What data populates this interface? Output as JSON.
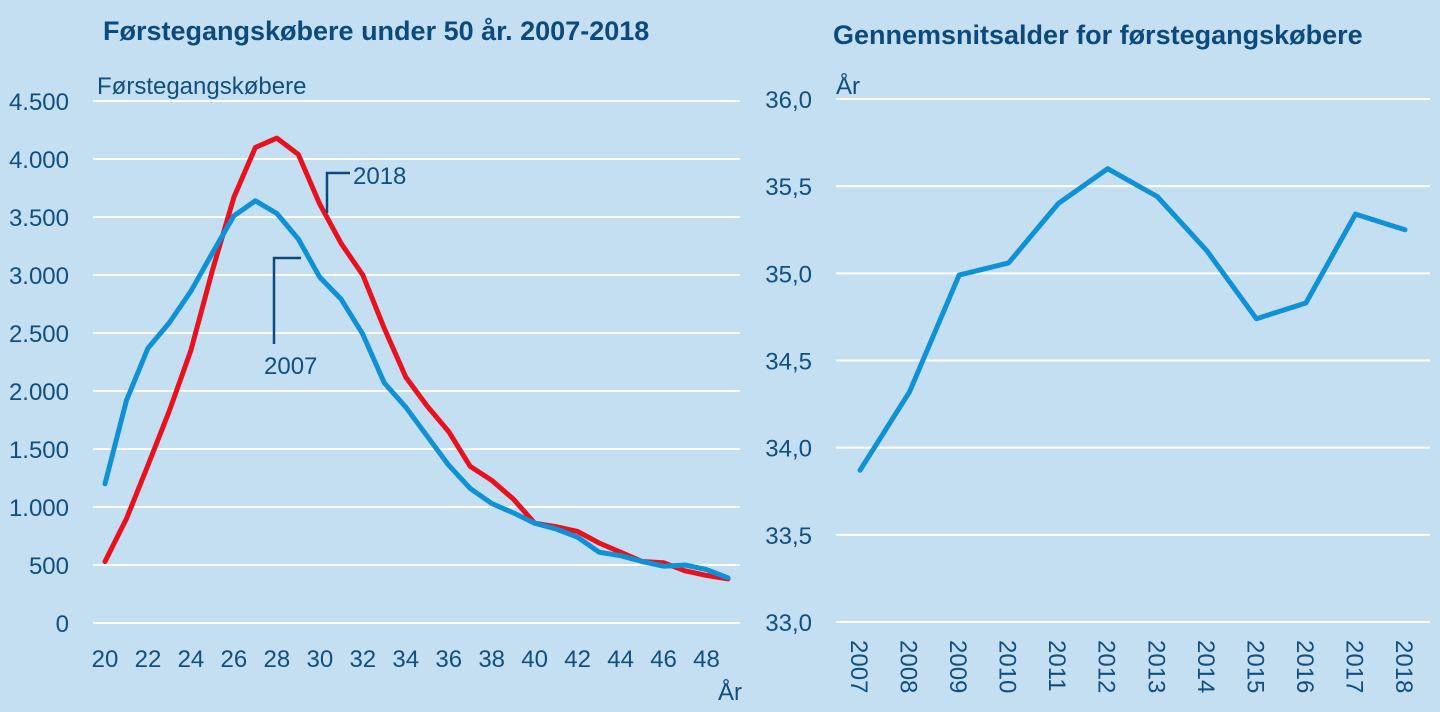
{
  "colors": {
    "background": "#c5dff2",
    "text": "#104f80",
    "grid": "#ffffff",
    "series_2007": "#0f91d6",
    "series_2018": "#e8121e",
    "annotation": "#0d4a7c"
  },
  "chart_data": [
    {
      "type": "line",
      "title": "Førstegangskøbere under 50 år. 2007-2018",
      "ylabel": "Førstegangskøbere",
      "xlabel": "År",
      "ylim": [
        0,
        4500
      ],
      "yticks": [
        0,
        500,
        1000,
        1500,
        2000,
        2500,
        3000,
        3500,
        4000,
        4500
      ],
      "ytick_labels": [
        "0",
        "500",
        "1.000",
        "1.500",
        "2.000",
        "2.500",
        "3.000",
        "3.500",
        "4.000",
        "4.500"
      ],
      "xlim": [
        20,
        49
      ],
      "xticks": [
        20,
        22,
        24,
        26,
        28,
        30,
        32,
        34,
        36,
        38,
        40,
        42,
        44,
        46,
        48
      ],
      "xtick_labels": [
        "20",
        "22",
        "24",
        "26",
        "28",
        "30",
        "32",
        "34",
        "36",
        "38",
        "40",
        "42",
        "44",
        "46",
        "48"
      ],
      "grid": true,
      "legend": "inline-annotations",
      "x": [
        20,
        21,
        22,
        23,
        24,
        25,
        26,
        27,
        28,
        29,
        30,
        31,
        32,
        33,
        34,
        35,
        36,
        37,
        38,
        39,
        40,
        41,
        42,
        43,
        44,
        45,
        46,
        47,
        48,
        49
      ],
      "series": [
        {
          "name": "2007",
          "color": "#0f91d6",
          "values": [
            1200,
            1920,
            2370,
            2590,
            2860,
            3190,
            3510,
            3640,
            3530,
            3310,
            2980,
            2790,
            2490,
            2070,
            1860,
            1610,
            1360,
            1160,
            1030,
            950,
            860,
            810,
            740,
            610,
            580,
            530,
            490,
            500,
            460,
            390
          ]
        },
        {
          "name": "2018",
          "color": "#e8121e",
          "values": [
            530,
            900,
            1360,
            1830,
            2350,
            3040,
            3670,
            4100,
            4180,
            4040,
            3610,
            3270,
            3000,
            2540,
            2120,
            1870,
            1650,
            1350,
            1230,
            1070,
            860,
            830,
            790,
            690,
            610,
            530,
            520,
            450,
            410,
            380
          ]
        }
      ],
      "annotations": [
        {
          "text": "2018",
          "series": "2018",
          "at_x": 31
        },
        {
          "text": "2007",
          "series": "2007",
          "at_x": 28.5
        }
      ]
    },
    {
      "type": "line",
      "title": "Gennemsnitsalder for førstegangskøbere",
      "ylabel": "År",
      "xlabel": "",
      "ylim": [
        33.0,
        36.0
      ],
      "yticks": [
        33.0,
        33.5,
        34.0,
        34.5,
        35.0,
        35.5,
        36.0
      ],
      "ytick_labels": [
        "33,0",
        "33,5",
        "34,0",
        "34,5",
        "35,0",
        "35,5",
        "36,0"
      ],
      "categories": [
        "2007",
        "2008",
        "2009",
        "2010",
        "2011",
        "2012",
        "2013",
        "2014",
        "2015",
        "2016",
        "2017",
        "2018"
      ],
      "xtick_rotation": "vertical",
      "grid": true,
      "legend": "none",
      "series": [
        {
          "name": "Gennemsnitsalder",
          "color": "#0f91d6",
          "values": [
            33.87,
            34.32,
            34.99,
            35.06,
            35.4,
            35.6,
            35.44,
            35.13,
            34.74,
            34.83,
            35.34,
            35.25
          ]
        }
      ]
    }
  ]
}
